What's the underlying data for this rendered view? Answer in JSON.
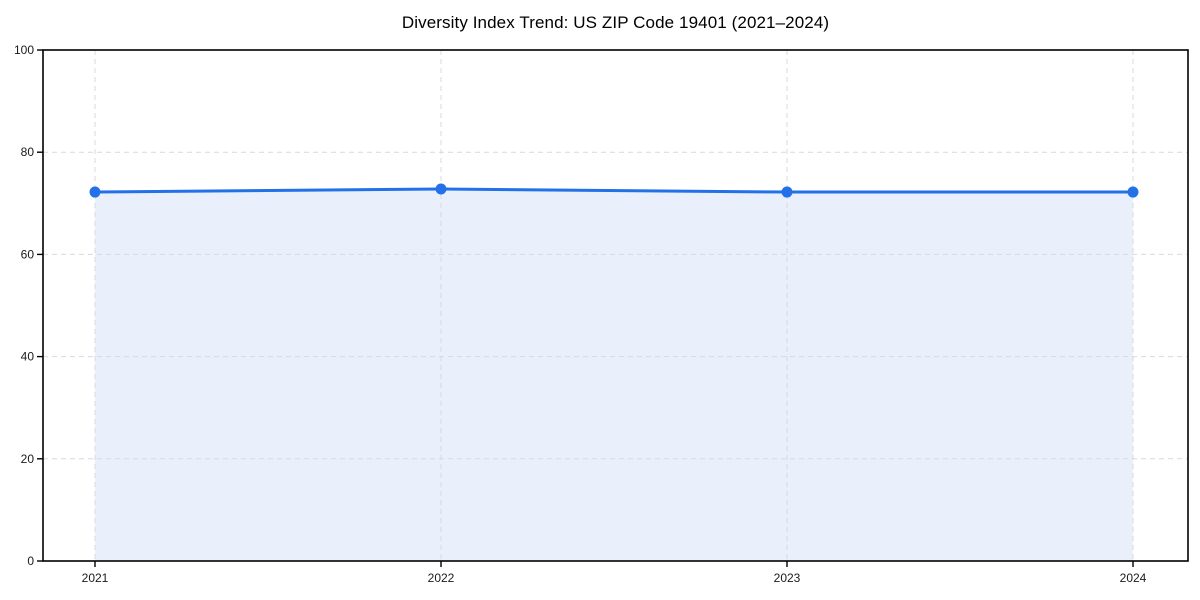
{
  "chart_data": {
    "type": "area",
    "title": "Diversity Index Trend: US ZIP Code 19401 (2021–2024)",
    "x": [
      "2021",
      "2022",
      "2023",
      "2024"
    ],
    "series": [
      {
        "name": "Diversity Index",
        "values": [
          72.2,
          72.8,
          72.2,
          72.2
        ]
      }
    ],
    "xlabel": "",
    "ylabel": "",
    "ylim": [
      0,
      100
    ],
    "yticks": [
      0,
      20,
      40,
      60,
      80,
      100
    ],
    "grid": true,
    "grid_style": "dashed",
    "legend": false,
    "marker": "circle",
    "colors": {
      "line": "#2271e8",
      "marker": "#2271e8",
      "fill": "#e9f0fc",
      "grid": "#d9d9d9",
      "spine": "#000000",
      "tick_text": "#1a1a1a",
      "background": "#ffffff"
    }
  }
}
